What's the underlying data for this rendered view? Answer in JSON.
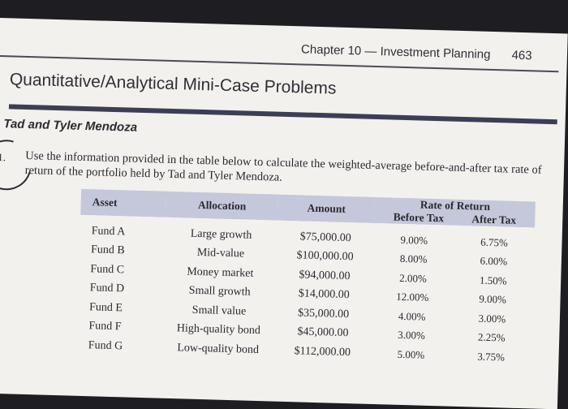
{
  "header": {
    "chapter": "Chapter 10 — Investment Planning",
    "page": "463"
  },
  "section_title": "Quantitative/Analytical Mini-Case Problems",
  "case_title": "Tad and Tyler Mendoza",
  "question": {
    "number": "1.",
    "text": "Use the information provided in the table below to calculate the weighted-average before-and-after tax rate of return of the portfolio held by Tad and Tyler Mendoza."
  },
  "table": {
    "headers": {
      "asset": "Asset",
      "allocation": "Allocation",
      "amount": "Amount",
      "rate_of_return": "Rate of Return",
      "before_tax": "Before Tax",
      "after_tax": "After Tax"
    },
    "rows": [
      {
        "asset": "Fund A",
        "allocation": "Large growth",
        "amount": "$75,000.00",
        "before_tax": "9.00%",
        "after_tax": "6.75%"
      },
      {
        "asset": "Fund B",
        "allocation": "Mid-value",
        "amount": "$100,000.00",
        "before_tax": "8.00%",
        "after_tax": "6.00%"
      },
      {
        "asset": "Fund C",
        "allocation": "Money market",
        "amount": "$94,000.00",
        "before_tax": "2.00%",
        "after_tax": "1.50%"
      },
      {
        "asset": "Fund D",
        "allocation": "Small growth",
        "amount": "$14,000.00",
        "before_tax": "12.00%",
        "after_tax": "9.00%"
      },
      {
        "asset": "Fund E",
        "allocation": "Small value",
        "amount": "$35,000.00",
        "before_tax": "4.00%",
        "after_tax": "3.00%"
      },
      {
        "asset": "Fund F",
        "allocation": "High-quality bond",
        "amount": "$45,000.00",
        "before_tax": "3.00%",
        "after_tax": "2.25%"
      },
      {
        "asset": "Fund G",
        "allocation": "Low-quality bond",
        "amount": "$112,000.00",
        "before_tax": "5.00%",
        "after_tax": "3.75%"
      }
    ]
  }
}
